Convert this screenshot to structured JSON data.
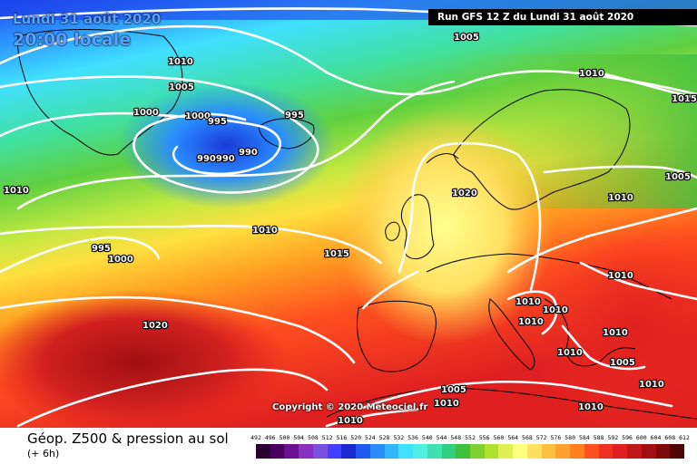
{
  "header": {
    "date": "Lundi 31 août 2020",
    "local_time": "20:00 locale",
    "run": "Run GFS 12 Z du Lundi 31 août 2020"
  },
  "copyright": "Copyright © 2020 Meteociel.fr",
  "footer": {
    "title": "Géop. Z500 & pression au sol",
    "subtitle": "(+ 6h)"
  },
  "legend": {
    "ticks": [
      "492",
      "496",
      "500",
      "504",
      "508",
      "512",
      "516",
      "520",
      "524",
      "528",
      "532",
      "536",
      "540",
      "544",
      "548",
      "552",
      "556",
      "560",
      "564",
      "568",
      "572",
      "576",
      "580",
      "584",
      "588",
      "592",
      "596",
      "600",
      "604",
      "608",
      "612"
    ],
    "colors": [
      "#2a0030",
      "#4a0060",
      "#6a1090",
      "#8a30c0",
      "#7a50e0",
      "#4040ff",
      "#1e2ad0",
      "#1f5af0",
      "#2a8cff",
      "#30b8ff",
      "#40e0ff",
      "#50f0e0",
      "#40e0b0",
      "#30d080",
      "#40c040",
      "#80d030",
      "#b0e030",
      "#e0f050",
      "#ffff80",
      "#ffe060",
      "#ffc040",
      "#ffa030",
      "#ff8020",
      "#ff5020",
      "#f03020",
      "#e02020",
      "#c01818",
      "#a01010",
      "#800808",
      "#500404"
    ]
  },
  "isobars": [
    {
      "text": "1005"
    },
    {
      "text": "1010"
    },
    {
      "text": "1010"
    },
    {
      "text": "1005"
    },
    {
      "text": "1015"
    },
    {
      "text": "1000"
    },
    {
      "text": "1000"
    },
    {
      "text": "995"
    },
    {
      "text": "995"
    },
    {
      "text": "990"
    },
    {
      "text": "990990"
    },
    {
      "text": "1010"
    },
    {
      "text": "1005"
    },
    {
      "text": "1020"
    },
    {
      "text": "1010"
    },
    {
      "text": "1010"
    },
    {
      "text": "995"
    },
    {
      "text": "1000"
    },
    {
      "text": "1015"
    },
    {
      "text": "1020"
    },
    {
      "text": "1010"
    },
    {
      "text": "1010"
    },
    {
      "text": "1010"
    },
    {
      "text": "1010"
    },
    {
      "text": "1010"
    },
    {
      "text": "1010"
    },
    {
      "text": "1005"
    },
    {
      "text": "1010"
    },
    {
      "text": "1005"
    },
    {
      "text": "1010"
    },
    {
      "text": "1010"
    },
    {
      "text": "1010"
    }
  ]
}
